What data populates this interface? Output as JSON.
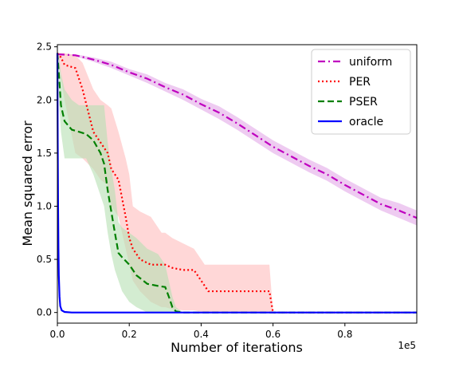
{
  "chart_data": {
    "type": "line",
    "title": "",
    "xlabel": "Number of iterations",
    "ylabel": "Mean squared error",
    "x_scale_label": "1e5",
    "xlim": [
      0,
      1.0
    ],
    "ylim": [
      -0.1,
      2.52
    ],
    "x_ticks": [
      0.0,
      0.2,
      0.4,
      0.6,
      0.8
    ],
    "x_tick_labels": [
      "0.0",
      "0.2",
      "0.4",
      "0.6",
      "0.8"
    ],
    "y_ticks": [
      0.0,
      0.5,
      1.0,
      1.5,
      2.0,
      2.5
    ],
    "y_tick_labels": [
      "0.0",
      "0.5",
      "1.0",
      "1.5",
      "2.0",
      "2.5"
    ],
    "grid": false,
    "legend_position": "top-right",
    "series": [
      {
        "name": "uniform",
        "color": "#bf00bf",
        "band_color": "#e3a8e8",
        "style": "dashdot",
        "x": [
          0,
          0.05,
          0.1,
          0.15,
          0.2,
          0.25,
          0.3,
          0.35,
          0.4,
          0.45,
          0.5,
          0.55,
          0.6,
          0.65,
          0.7,
          0.75,
          0.8,
          0.85,
          0.9,
          0.95,
          1.0
        ],
        "y": [
          2.43,
          2.42,
          2.38,
          2.33,
          2.26,
          2.2,
          2.12,
          2.05,
          1.96,
          1.88,
          1.78,
          1.67,
          1.56,
          1.47,
          1.38,
          1.3,
          1.2,
          1.11,
          1.02,
          0.96,
          0.89
        ],
        "lower": [
          2.43,
          2.41,
          2.36,
          2.3,
          2.23,
          2.16,
          2.08,
          2.0,
          1.91,
          1.82,
          1.72,
          1.61,
          1.5,
          1.41,
          1.32,
          1.24,
          1.14,
          1.05,
          0.96,
          0.89,
          0.82
        ],
        "upper": [
          2.43,
          2.43,
          2.4,
          2.36,
          2.29,
          2.24,
          2.16,
          2.1,
          2.01,
          1.94,
          1.84,
          1.73,
          1.62,
          1.53,
          1.44,
          1.36,
          1.26,
          1.17,
          1.08,
          1.03,
          0.96
        ]
      },
      {
        "name": "PER",
        "color": "#ff0000",
        "band_color": "#ffbdbd",
        "style": "dotted",
        "x": [
          0,
          0.01,
          0.02,
          0.05,
          0.07,
          0.1,
          0.12,
          0.14,
          0.15,
          0.17,
          0.19,
          0.2,
          0.21,
          0.23,
          0.26,
          0.29,
          0.3,
          0.32,
          0.35,
          0.38,
          0.41,
          0.42,
          0.45,
          0.5,
          0.55,
          0.59,
          0.6,
          0.61,
          0.65,
          0.8,
          1.0
        ],
        "y": [
          2.44,
          2.4,
          2.33,
          2.3,
          2.1,
          1.7,
          1.6,
          1.5,
          1.35,
          1.25,
          0.9,
          0.7,
          0.6,
          0.5,
          0.45,
          0.45,
          0.45,
          0.42,
          0.4,
          0.4,
          0.25,
          0.2,
          0.2,
          0.2,
          0.2,
          0.2,
          0.0,
          0.0,
          0.0,
          0.0,
          0.0
        ],
        "lower": [
          2.44,
          2.2,
          2.0,
          1.5,
          1.45,
          1.35,
          1.25,
          1.2,
          1.0,
          0.9,
          0.6,
          0.45,
          0.3,
          0.2,
          0.1,
          0.05,
          0.05,
          0.03,
          0.02,
          0.02,
          0.0,
          0.0,
          0.0,
          0.0,
          0.0,
          0.0,
          0.0,
          0.0,
          0.0,
          0.0,
          0.0
        ],
        "upper": [
          2.44,
          2.44,
          2.44,
          2.42,
          2.35,
          2.1,
          2.0,
          1.95,
          1.92,
          1.7,
          1.45,
          1.3,
          1.0,
          0.95,
          0.9,
          0.75,
          0.75,
          0.7,
          0.65,
          0.6,
          0.45,
          0.45,
          0.45,
          0.45,
          0.45,
          0.45,
          0.0,
          0.0,
          0.0,
          0.0,
          0.0
        ]
      },
      {
        "name": "PSER",
        "color": "#008000",
        "band_color": "#b6dfb3",
        "style": "dashed",
        "x": [
          0,
          0.005,
          0.01,
          0.02,
          0.04,
          0.06,
          0.08,
          0.1,
          0.12,
          0.13,
          0.14,
          0.15,
          0.16,
          0.17,
          0.18,
          0.2,
          0.22,
          0.25,
          0.28,
          0.3,
          0.31,
          0.32,
          0.33,
          0.35,
          0.4,
          0.6,
          0.8,
          1.0
        ],
        "y": [
          2.44,
          2.2,
          1.95,
          1.8,
          1.72,
          1.7,
          1.68,
          1.62,
          1.5,
          1.4,
          1.15,
          0.95,
          0.75,
          0.56,
          0.52,
          0.45,
          0.35,
          0.27,
          0.25,
          0.24,
          0.15,
          0.05,
          0.01,
          0.0,
          0.0,
          0.0,
          0.0,
          0.0
        ],
        "lower": [
          2.44,
          1.95,
          1.7,
          1.45,
          1.45,
          1.45,
          1.45,
          1.3,
          1.1,
          1.0,
          0.75,
          0.55,
          0.4,
          0.3,
          0.2,
          0.1,
          0.05,
          0.0,
          0.0,
          0.0,
          0.0,
          0.0,
          0.0,
          0.0,
          0.0,
          0.0,
          0.0,
          0.0
        ],
        "upper": [
          2.44,
          2.4,
          2.25,
          2.1,
          2.0,
          1.95,
          1.95,
          1.95,
          1.95,
          1.95,
          1.6,
          1.35,
          1.15,
          0.85,
          0.8,
          0.75,
          0.7,
          0.6,
          0.55,
          0.45,
          0.3,
          0.15,
          0.05,
          0.0,
          0.0,
          0.0,
          0.0,
          0.0
        ]
      },
      {
        "name": "oracle",
        "color": "#0000ff",
        "style": "solid",
        "x": [
          0,
          0.001,
          0.002,
          0.003,
          0.004,
          0.006,
          0.008,
          0.012,
          0.02,
          0.04,
          0.2,
          0.5,
          1.0
        ],
        "y": [
          2.44,
          1.6,
          1.0,
          0.6,
          0.35,
          0.15,
          0.06,
          0.02,
          0.005,
          0.0,
          0.0,
          0.0,
          0.0
        ]
      }
    ]
  }
}
